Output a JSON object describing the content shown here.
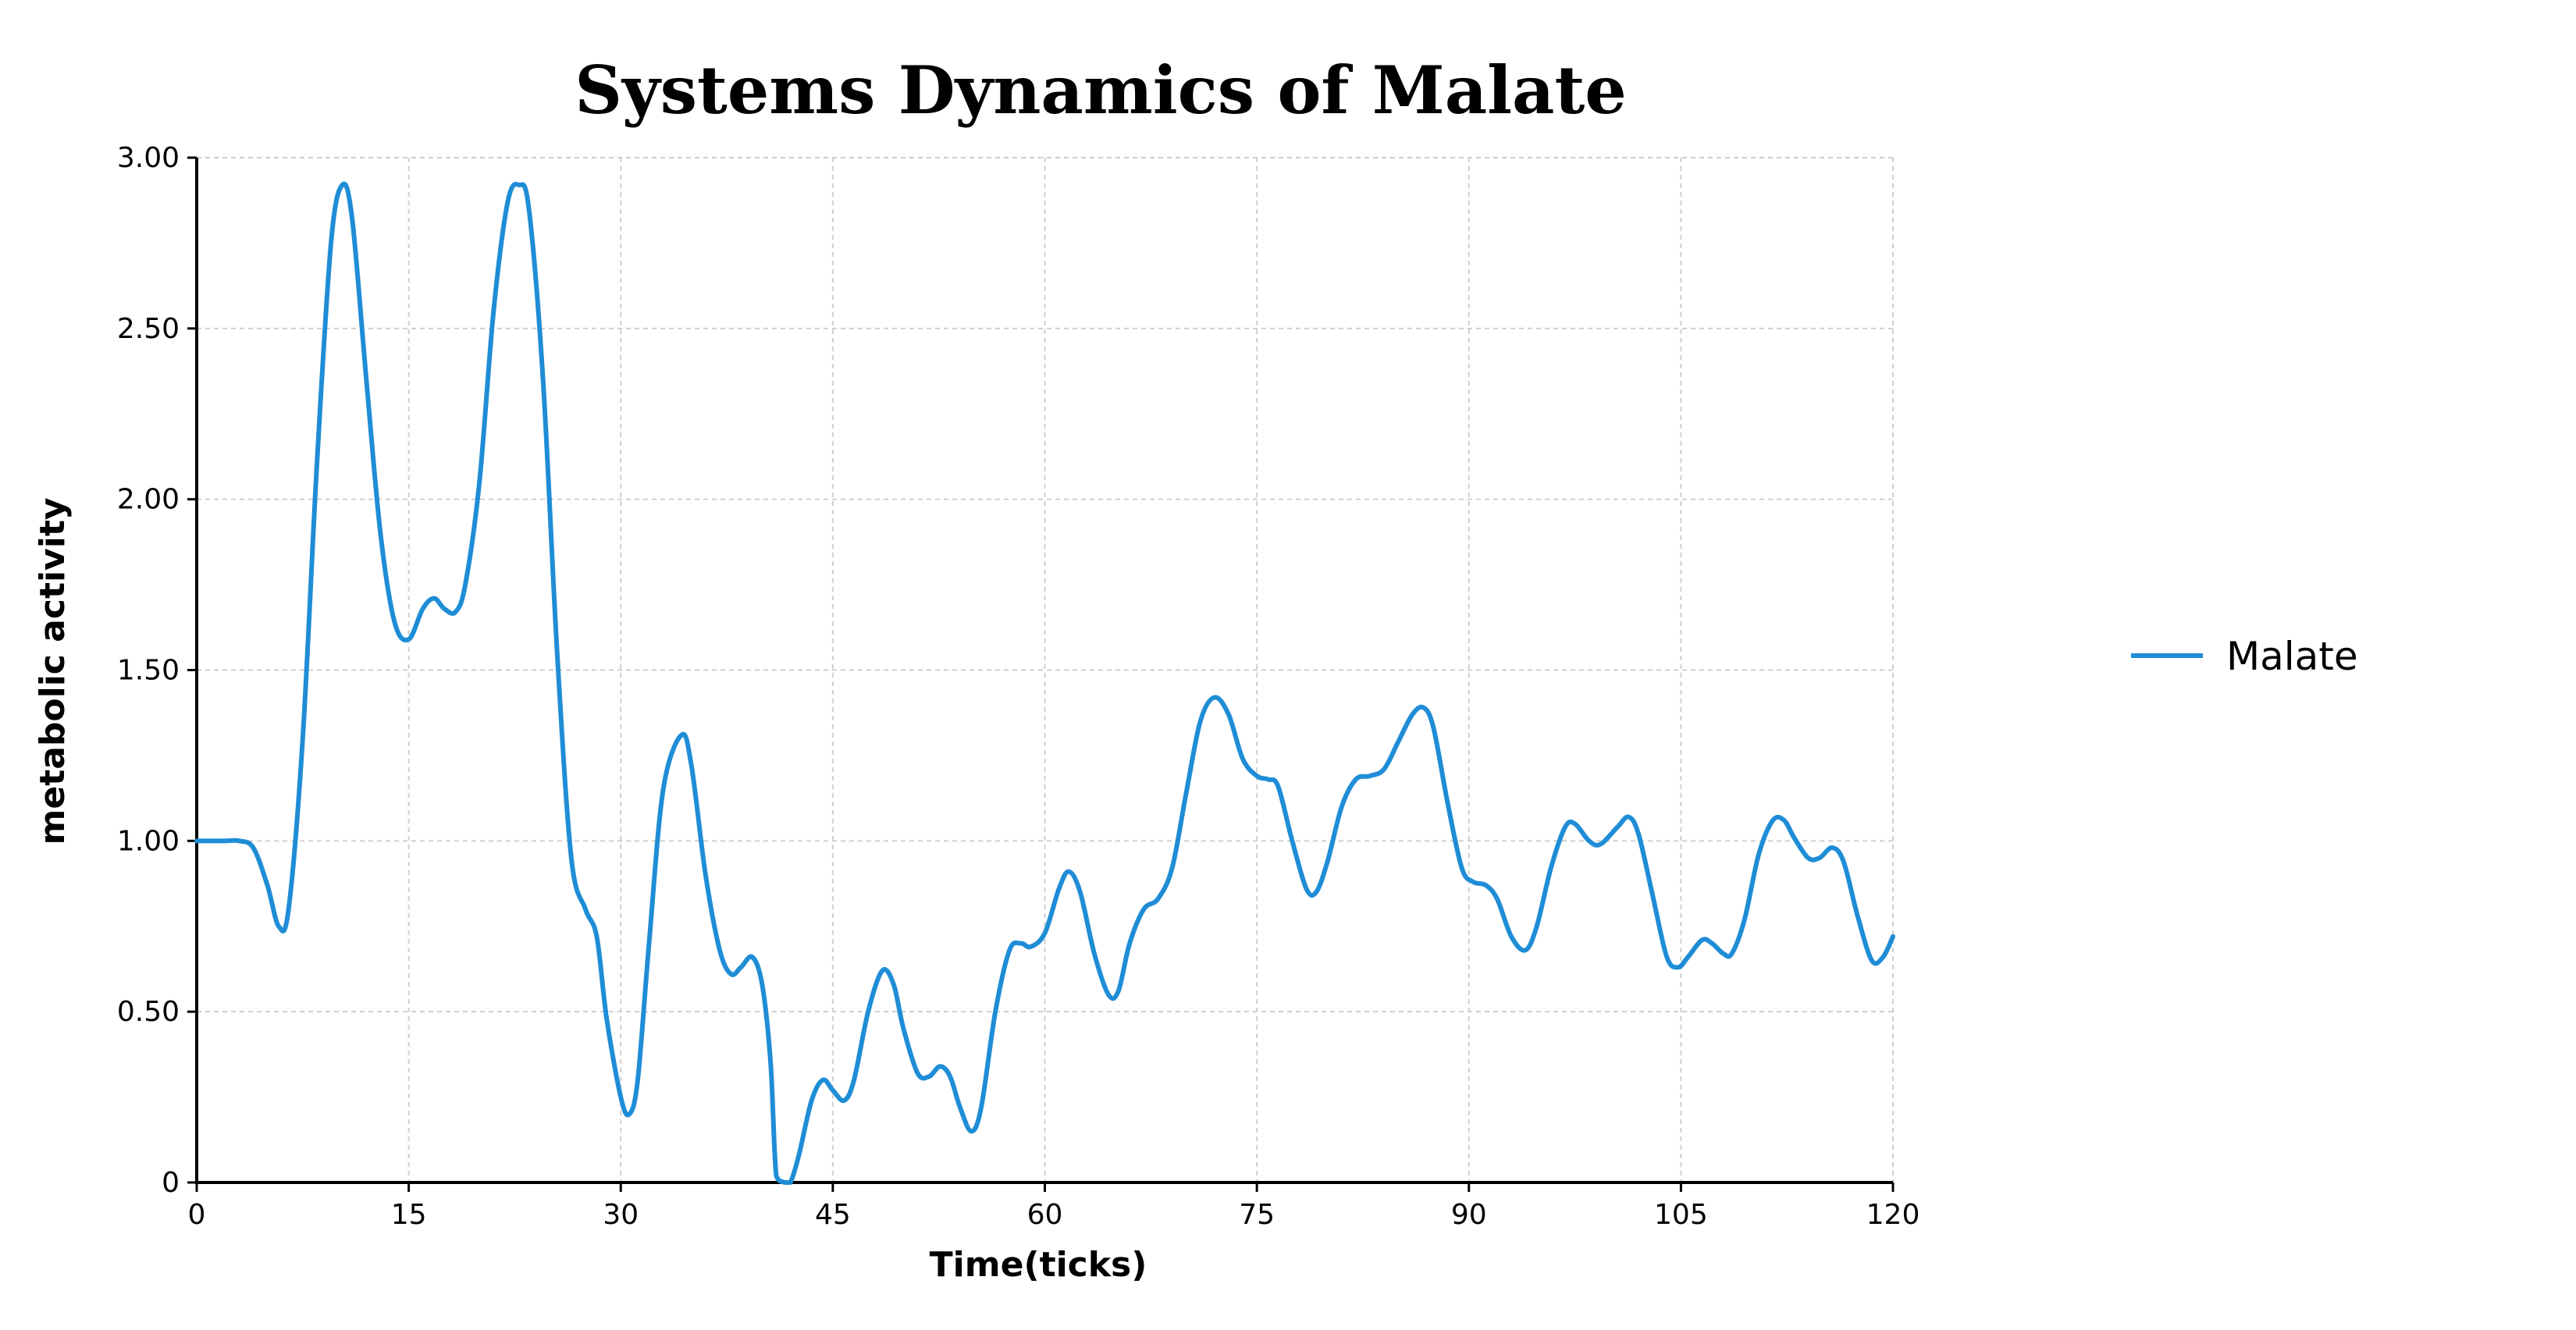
{
  "chart_data": {
    "type": "line",
    "title": "Systems Dynamics of Malate",
    "xlabel": "Time(ticks)",
    "ylabel": "metabolic activity",
    "xlim": [
      0,
      120
    ],
    "ylim": [
      0,
      3.0
    ],
    "x_ticks": [
      "0",
      "15",
      "30",
      "45",
      "60",
      "75",
      "90",
      "105",
      "120"
    ],
    "y_ticks": [
      "0",
      "0.50",
      "1.00",
      "1.50",
      "2.00",
      "2.50",
      "3.00"
    ],
    "grid": true,
    "legend_position": "right",
    "series": [
      {
        "name": "Malate",
        "color": "#1f8dd6",
        "points": [
          [
            0,
            1.0
          ],
          [
            1,
            1.0
          ],
          [
            2,
            1.0
          ],
          [
            3,
            1.0
          ],
          [
            4,
            0.98
          ],
          [
            5,
            0.87
          ],
          [
            5.8,
            0.75
          ],
          [
            6.5,
            0.8
          ],
          [
            7.5,
            1.3
          ],
          [
            8.5,
            2.1
          ],
          [
            9.5,
            2.75
          ],
          [
            10.3,
            2.92
          ],
          [
            11,
            2.82
          ],
          [
            12,
            2.35
          ],
          [
            13,
            1.9
          ],
          [
            14,
            1.64
          ],
          [
            15,
            1.59
          ],
          [
            16,
            1.68
          ],
          [
            16.8,
            1.71
          ],
          [
            17.5,
            1.68
          ],
          [
            18.3,
            1.67
          ],
          [
            19,
            1.75
          ],
          [
            20,
            2.05
          ],
          [
            21,
            2.55
          ],
          [
            22,
            2.87
          ],
          [
            22.8,
            2.92
          ],
          [
            23.5,
            2.85
          ],
          [
            24.5,
            2.35
          ],
          [
            25.5,
            1.55
          ],
          [
            26.5,
            0.95
          ],
          [
            27.5,
            0.8
          ],
          [
            28.3,
            0.72
          ],
          [
            29,
            0.48
          ],
          [
            30,
            0.25
          ],
          [
            30.6,
            0.2
          ],
          [
            31.2,
            0.3
          ],
          [
            32,
            0.7
          ],
          [
            33,
            1.15
          ],
          [
            34.3,
            1.31
          ],
          [
            35,
            1.22
          ],
          [
            36,
            0.9
          ],
          [
            37,
            0.68
          ],
          [
            37.8,
            0.61
          ],
          [
            38.5,
            0.63
          ],
          [
            39.3,
            0.66
          ],
          [
            40,
            0.58
          ],
          [
            40.6,
            0.35
          ],
          [
            41,
            0.02
          ],
          [
            41.6,
            0.0
          ],
          [
            42,
            0.0
          ],
          [
            42.6,
            0.08
          ],
          [
            43.5,
            0.24
          ],
          [
            44.3,
            0.3
          ],
          [
            45,
            0.27
          ],
          [
            45.8,
            0.24
          ],
          [
            46.5,
            0.3
          ],
          [
            47.5,
            0.5
          ],
          [
            48.5,
            0.62
          ],
          [
            49.3,
            0.58
          ],
          [
            50,
            0.45
          ],
          [
            51,
            0.32
          ],
          [
            51.8,
            0.31
          ],
          [
            52.6,
            0.34
          ],
          [
            53.3,
            0.31
          ],
          [
            54,
            0.22
          ],
          [
            54.8,
            0.15
          ],
          [
            55.5,
            0.22
          ],
          [
            56.5,
            0.5
          ],
          [
            57.5,
            0.68
          ],
          [
            58.3,
            0.7
          ],
          [
            59,
            0.69
          ],
          [
            60,
            0.73
          ],
          [
            61,
            0.86
          ],
          [
            61.7,
            0.91
          ],
          [
            62.5,
            0.85
          ],
          [
            63.5,
            0.67
          ],
          [
            64.5,
            0.55
          ],
          [
            65.2,
            0.56
          ],
          [
            66,
            0.7
          ],
          [
            67,
            0.8
          ],
          [
            68,
            0.83
          ],
          [
            69,
            0.92
          ],
          [
            70,
            1.14
          ],
          [
            71,
            1.35
          ],
          [
            72,
            1.42
          ],
          [
            73,
            1.37
          ],
          [
            74,
            1.24
          ],
          [
            75,
            1.19
          ],
          [
            75.8,
            1.18
          ],
          [
            76.5,
            1.16
          ],
          [
            77.5,
            1.0
          ],
          [
            78.5,
            0.86
          ],
          [
            79.2,
            0.85
          ],
          [
            80,
            0.94
          ],
          [
            81,
            1.1
          ],
          [
            82,
            1.18
          ],
          [
            83,
            1.19
          ],
          [
            84,
            1.21
          ],
          [
            85,
            1.29
          ],
          [
            86,
            1.37
          ],
          [
            86.8,
            1.39
          ],
          [
            87.5,
            1.33
          ],
          [
            88.5,
            1.11
          ],
          [
            89.5,
            0.92
          ],
          [
            90.3,
            0.88
          ],
          [
            91.2,
            0.87
          ],
          [
            92,
            0.83
          ],
          [
            93,
            0.72
          ],
          [
            94,
            0.68
          ],
          [
            94.8,
            0.75
          ],
          [
            95.8,
            0.92
          ],
          [
            96.8,
            1.04
          ],
          [
            97.5,
            1.05
          ],
          [
            98.5,
            1.0
          ],
          [
            99.3,
            0.99
          ],
          [
            100.5,
            1.04
          ],
          [
            101.3,
            1.07
          ],
          [
            102,
            1.02
          ],
          [
            103,
            0.84
          ],
          [
            104,
            0.66
          ],
          [
            104.8,
            0.63
          ],
          [
            105.5,
            0.66
          ],
          [
            106.5,
            0.71
          ],
          [
            107.2,
            0.7
          ],
          [
            108,
            0.67
          ],
          [
            108.6,
            0.67
          ],
          [
            109.5,
            0.77
          ],
          [
            110.5,
            0.96
          ],
          [
            111.5,
            1.06
          ],
          [
            112.3,
            1.06
          ],
          [
            113,
            1.01
          ],
          [
            114,
            0.95
          ],
          [
            114.8,
            0.95
          ],
          [
            115.7,
            0.98
          ],
          [
            116.5,
            0.94
          ],
          [
            117.5,
            0.78
          ],
          [
            118.5,
            0.65
          ],
          [
            119.3,
            0.66
          ],
          [
            120,
            0.72
          ]
        ]
      }
    ]
  }
}
